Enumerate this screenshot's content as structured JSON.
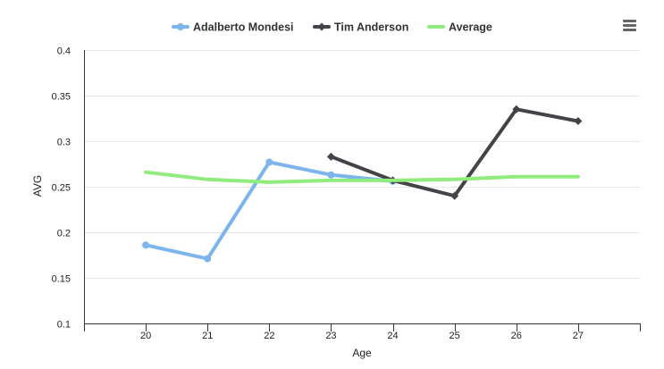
{
  "chart_data": {
    "type": "line",
    "title": "",
    "xlabel": "Age",
    "ylabel": "AVG",
    "x": [
      20,
      21,
      22,
      23,
      24,
      25,
      26,
      27
    ],
    "xlim": [
      19,
      28
    ],
    "ylim": [
      0.1,
      0.4
    ],
    "yticks": [
      0.1,
      0.15,
      0.2,
      0.25,
      0.3,
      0.35,
      0.4
    ],
    "ytick_labels": [
      "0.1",
      "0.15",
      "0.2",
      "0.25",
      "0.3",
      "0.35",
      "0.4"
    ],
    "grid": true,
    "legend_position": "top-center",
    "series": [
      {
        "name": "Adalberto Mondesi",
        "color": "#7cb5ec",
        "marker": "circle",
        "points": [
          [
            20,
            0.186
          ],
          [
            21,
            0.171
          ],
          [
            22,
            0.277
          ],
          [
            23,
            0.263
          ],
          [
            24,
            0.256
          ]
        ]
      },
      {
        "name": "Tim Anderson",
        "color": "#434348",
        "marker": "diamond",
        "points": [
          [
            23,
            0.283
          ],
          [
            24,
            0.257
          ],
          [
            25,
            0.24
          ],
          [
            26,
            0.335
          ],
          [
            27,
            0.322
          ]
        ]
      },
      {
        "name": "Average",
        "color": "#90ed7d",
        "marker": "none",
        "points": [
          [
            20,
            0.266
          ],
          [
            21,
            0.258
          ],
          [
            22,
            0.255
          ],
          [
            23,
            0.257
          ],
          [
            24,
            0.257
          ],
          [
            25,
            0.258
          ],
          [
            26,
            0.261
          ],
          [
            27,
            0.261
          ]
        ]
      }
    ]
  },
  "menu_icon": "hamburger-menu-icon"
}
